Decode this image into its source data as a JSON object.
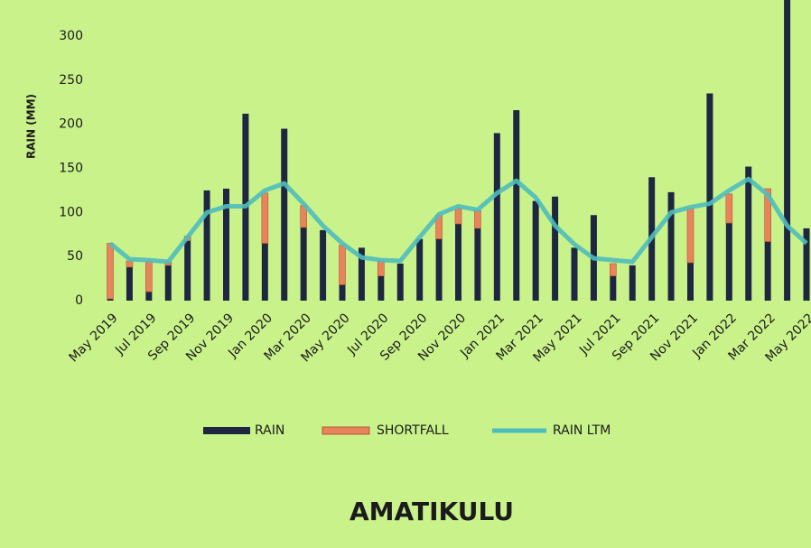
{
  "chart_data": {
    "type": "bar",
    "title": "AMATIKULU",
    "y_label": "RAIN (MM)",
    "categories": [
      "May 2019",
      null,
      "Jul 2019",
      null,
      "Sep 2019",
      null,
      "Nov 2019",
      null,
      "Jan 2020",
      null,
      "Mar 2020",
      null,
      "May 2020",
      null,
      "Jul 2020",
      null,
      "Sep 2020",
      null,
      "Nov 2020",
      null,
      "Jan 2021",
      null,
      "Mar 2021",
      null,
      "May 2021",
      null,
      "Jul 2021",
      null,
      "Sep 2021",
      null,
      "Nov 2021",
      null,
      "Jan 2022",
      null,
      "Mar 2022",
      null,
      "May 2022"
    ],
    "series": [
      {
        "name": "RAIN",
        "color": "#1e2742",
        "values": [
          2,
          38,
          10,
          40,
          68,
          125,
          127,
          212,
          65,
          195,
          83,
          80,
          18,
          60,
          28,
          42,
          70,
          70,
          87,
          82,
          190,
          216,
          113,
          118,
          60,
          97,
          28,
          40,
          140,
          123,
          43,
          235,
          88,
          152,
          67,
          350,
          82
        ]
      },
      {
        "name": "SHORTFALL",
        "color": "#e8845a",
        "values": [
          63,
          7,
          35,
          4,
          5,
          0,
          0,
          0,
          57,
          0,
          25,
          0,
          45,
          0,
          17,
          0,
          0,
          27,
          17,
          20,
          0,
          0,
          0,
          0,
          0,
          0,
          14,
          0,
          0,
          0,
          62,
          0,
          33,
          0,
          60,
          0,
          0
        ]
      },
      {
        "name": "RAIN LTM",
        "color": "#4fbcbc",
        "type": "line",
        "values": [
          65,
          47,
          46,
          44,
          72,
          100,
          107,
          107,
          125,
          133,
          110,
          85,
          65,
          49,
          46,
          45,
          72,
          98,
          107,
          103,
          122,
          136,
          117,
          85,
          64,
          48,
          46,
          44,
          72,
          100,
          106,
          110,
          125,
          138,
          120,
          85,
          65
        ]
      }
    ],
    "ylim": [
      0,
      340
    ],
    "yticks": [
      0,
      50,
      100,
      150,
      200,
      250,
      300
    ],
    "legend": "bottom"
  }
}
